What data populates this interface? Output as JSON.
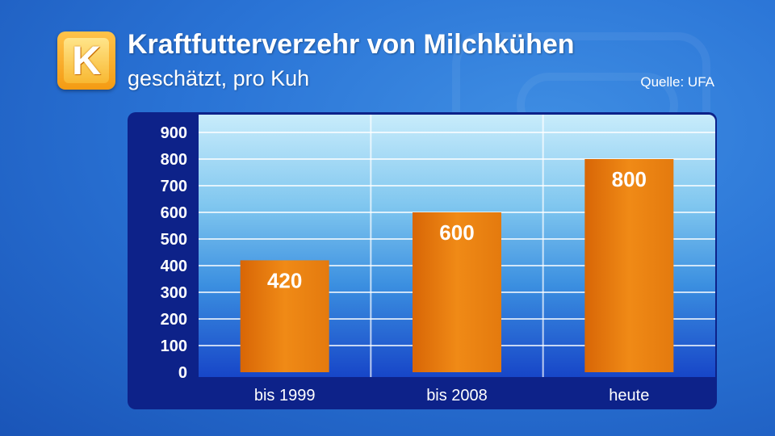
{
  "logo": {
    "letter": "K"
  },
  "header": {
    "title": "Kraftfutterverzehr von Milchkühen",
    "subtitle": "geschätzt, pro Kuh",
    "source": "Quelle: UFA"
  },
  "colors": {
    "bar": "#e8760e",
    "panel": "#0d2289",
    "background": "#2a74d6"
  },
  "chart_data": {
    "type": "bar",
    "categories": [
      "bis 1999",
      "bis 2008",
      "heute"
    ],
    "values": [
      420,
      600,
      800
    ],
    "data_labels": [
      "420",
      "600",
      "800"
    ],
    "title": "Kraftfutterverzehr von Milchkühen",
    "subtitle": "geschätzt, pro Kuh",
    "xlabel": "",
    "ylabel": "",
    "ylim": [
      0,
      900
    ],
    "yticks": [
      0,
      100,
      200,
      300,
      400,
      500,
      600,
      700,
      800,
      900
    ],
    "grid": true,
    "legend": "none"
  }
}
